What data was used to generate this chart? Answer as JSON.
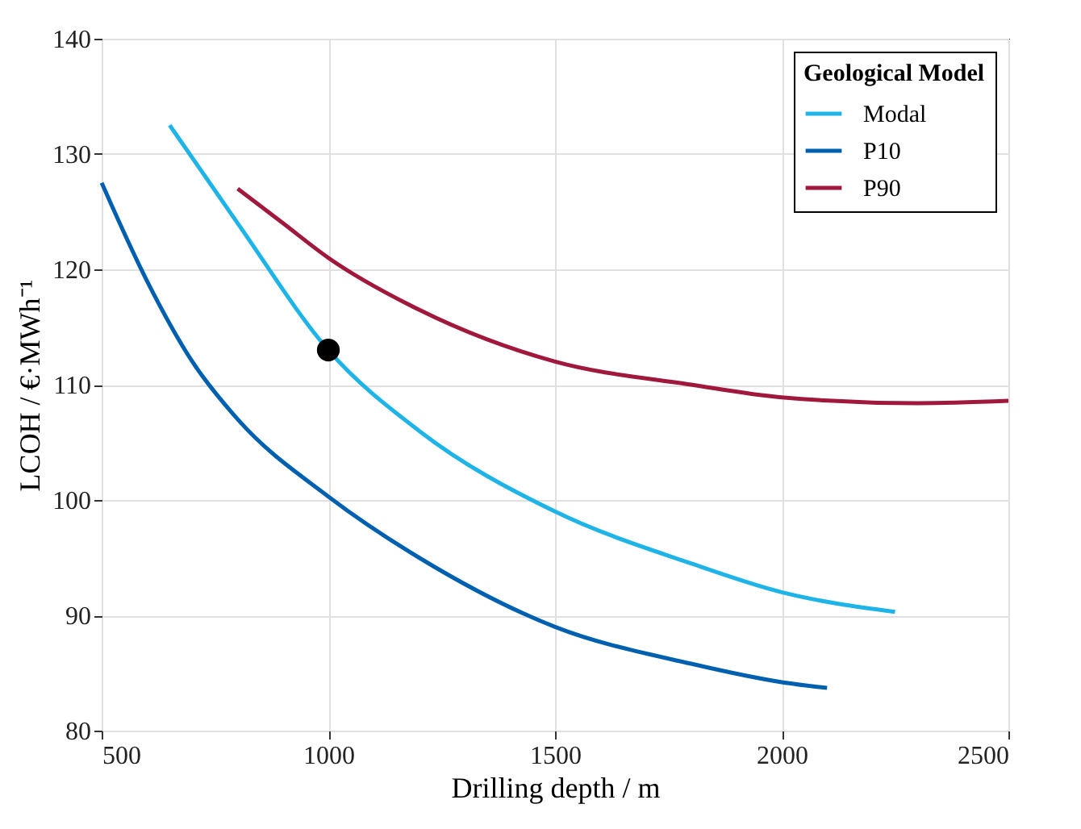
{
  "chart_data": {
    "type": "line",
    "xlabel": "Drilling depth / m",
    "ylabel": "LCOH / €·MWh⁻¹",
    "legend_title": "Geological Model",
    "legend": "top right",
    "grid": true,
    "marker": "none",
    "line_style": "solid",
    "xlim": [
      500,
      2500
    ],
    "xticks": [
      500,
      1000,
      1500,
      2000,
      2500
    ],
    "ylim": [
      80,
      140
    ],
    "yticks": [
      80,
      90,
      100,
      110,
      120,
      130,
      140
    ],
    "series": [
      {
        "name": "Modal",
        "color": "#1eb4e8",
        "x": [
          650,
          800,
          1000,
          1200,
          1500,
          1800,
          2000,
          2250
        ],
        "values": [
          132.5,
          124,
          113,
          106,
          99,
          94.5,
          92,
          90.3
        ]
      },
      {
        "name": "P10",
        "color": "#0060b0",
        "x": [
          500,
          600,
          700,
          800,
          1000,
          1200,
          1500,
          1800,
          2000,
          2100
        ],
        "values": [
          127.5,
          119,
          112,
          107,
          100.3,
          95,
          89,
          85.8,
          84.2,
          83.7
        ]
      },
      {
        "name": "P90",
        "color": "#a0183c",
        "x": [
          800,
          900,
          1000,
          1200,
          1500,
          1800,
          2000,
          2300,
          2500
        ],
        "values": [
          127,
          124,
          121,
          116.5,
          112,
          110,
          108.9,
          108.4,
          108.6
        ]
      },
      {
        "type": "scatter",
        "color": "#000000",
        "marker": "circle",
        "x": [
          1000
        ],
        "values": [
          113
        ]
      }
    ]
  }
}
